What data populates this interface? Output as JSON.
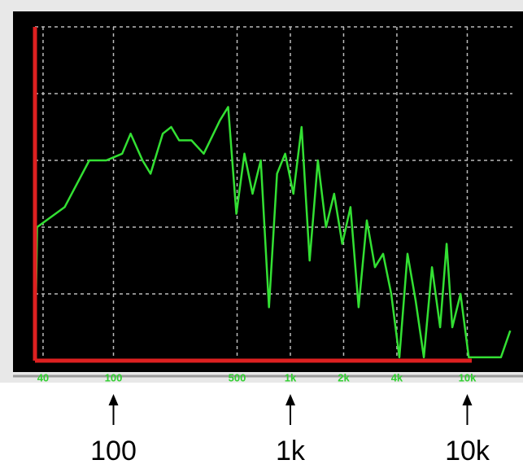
{
  "chart_data": {
    "type": "line",
    "xscale": "log",
    "x": [
      36,
      37,
      53,
      73,
      91,
      112,
      125,
      146,
      162,
      190,
      212,
      235,
      276,
      324,
      400,
      445,
      495,
      550,
      611,
      680,
      757,
      841,
      935,
      1040,
      1157,
      1286,
      1430,
      1590,
      1768,
      1966,
      2186,
      2430,
      2706,
      3007,
      3343,
      3718,
      4133,
      4595,
      5109,
      5681,
      6316,
      7021,
      7640,
      8230,
      9165,
      10190,
      13280,
      15500,
      17500
    ],
    "series": [
      {
        "color": "#33e033",
        "values": [
          0,
          2.0,
          2.3,
          3.0,
          3.0,
          3.1,
          3.4,
          3.0,
          2.8,
          3.4,
          3.5,
          3.3,
          3.3,
          3.1,
          3.6,
          3.8,
          2.2,
          3.1,
          2.5,
          3.0,
          0.8,
          2.8,
          3.1,
          2.5,
          3.5,
          1.5,
          3.0,
          2.0,
          2.5,
          1.75,
          2.3,
          0.8,
          2.1,
          1.4,
          1.6,
          1.0,
          0.05,
          1.6,
          0.9,
          0.05,
          1.4,
          0.5,
          1.75,
          0.5,
          1.0,
          0.05,
          0.05,
          0.05,
          0.45
        ]
      }
    ],
    "xlim": [
      36,
      18000
    ],
    "ylim": [
      0,
      5
    ],
    "xticks": [
      40,
      100,
      500,
      {
        "value": 1000,
        "label": "1k"
      },
      {
        "value": 2000,
        "label": "2k"
      },
      {
        "value": 4000,
        "label": "4k"
      },
      {
        "value": 10000,
        "label": "10k"
      }
    ],
    "ygrid": [
      1,
      2,
      3,
      4,
      5
    ],
    "grid": true,
    "axis_color": "#dd2020",
    "annotations": [
      {
        "text": "100",
        "x": 100
      },
      {
        "text": "1k",
        "x": 1000
      },
      {
        "text": "10k",
        "x": 10000
      }
    ]
  }
}
